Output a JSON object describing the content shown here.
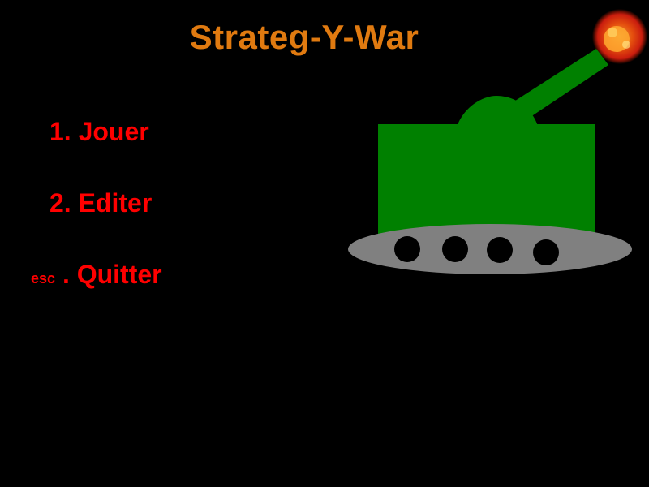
{
  "game": {
    "title": "Strateg-Y-War"
  },
  "menu": {
    "items": [
      {
        "key": "1",
        "separator": ". ",
        "label": "Jouer"
      },
      {
        "key": "2",
        "separator": ". ",
        "label": "Editer"
      },
      {
        "key": "esc",
        "separator": " . ",
        "label": "Quitter"
      }
    ]
  },
  "colors": {
    "background": "#000000",
    "title": "#e07a10",
    "menu_text": "#ff0000",
    "tank_body": "#008000",
    "tank_track": "#808080",
    "tank_wheel": "#000000",
    "muzzle_flash": "#ff4000"
  },
  "icons": {
    "tank": "tank-illustration",
    "flash": "muzzle-flash"
  }
}
